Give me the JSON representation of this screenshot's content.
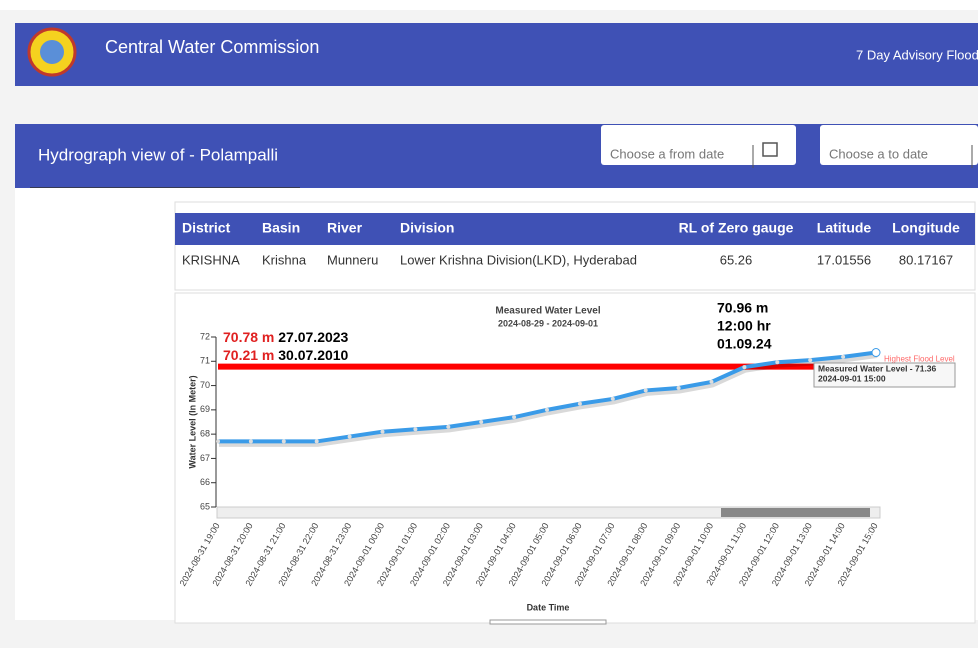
{
  "header": {
    "title": "Central Water Commission",
    "right_link": "7 Day Advisory Flood"
  },
  "subheader": {
    "title": "Hydrograph view of - Polampalli",
    "from_placeholder": "Choose a from date",
    "to_placeholder": "Choose a to date"
  },
  "table": {
    "columns": [
      "District",
      "Basin",
      "River",
      "Division",
      "RL of Zero gauge",
      "Latitude",
      "Longitude"
    ],
    "rows": [
      [
        "KRISHNA",
        "Krishna",
        "Munneru",
        "Lower Krishna Division(LKD), Hyderabad",
        "65.26",
        "17.01556",
        "80.17167"
      ]
    ]
  },
  "chart_data": {
    "type": "line",
    "title": "Measured Water Level",
    "subtitle": "2024-08-29 - 2024-09-01",
    "y_label": "Water Level (In Meter)",
    "x_label": "Date Time",
    "categories": [
      "2024-08-31 19:00",
      "2024-08-31 20:00",
      "2024-08-31 21:00",
      "2024-08-31 22:00",
      "2024-08-31 23:00",
      "2024-09-01 00:00",
      "2024-09-01 01:00",
      "2024-09-01 02:00",
      "2024-09-01 03:00",
      "2024-09-01 04:00",
      "2024-09-01 05:00",
      "2024-09-01 06:00",
      "2024-09-01 07:00",
      "2024-09-01 08:00",
      "2024-09-01 09:00",
      "2024-09-01 10:00",
      "2024-09-01 11:00",
      "2024-09-01 12:00",
      "2024-09-01 13:00",
      "2024-09-01 14:00",
      "2024-09-01 15:00"
    ],
    "series": [
      {
        "name": "Measured Water Level",
        "color": "#3a9be8",
        "values": [
          67.7,
          67.7,
          67.7,
          67.7,
          67.9,
          68.1,
          68.2,
          68.3,
          68.5,
          68.7,
          69.0,
          69.25,
          69.45,
          69.8,
          69.9,
          70.15,
          70.76,
          70.96,
          71.05,
          71.18,
          71.36
        ]
      }
    ],
    "ylim": [
      65,
      72
    ],
    "yticks": [
      65,
      66,
      67,
      68,
      69,
      70,
      71,
      72
    ],
    "hfl": {
      "label": "Highest Flood Level",
      "value": 70.78,
      "color": "#ff0000"
    },
    "annotations": [
      {
        "value": "70.78 m",
        "date": "27.07.2023"
      },
      {
        "value": "70.21 m",
        "date": "30.07.2010"
      }
    ],
    "callout": [
      "70.96 m",
      "12:00 hr",
      "01.09.24"
    ],
    "tooltip": [
      "Measured Water Level - 71.36",
      "2024-09-01 15:00"
    ]
  }
}
